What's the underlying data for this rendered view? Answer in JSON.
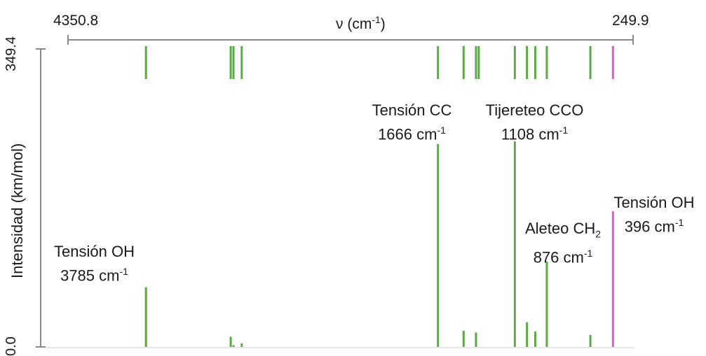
{
  "chart_data": {
    "type": "bar",
    "x_axis": {
      "label": "ν (cm",
      "label_sup": "-1",
      "label_close": ")",
      "left_tick": "4350.8",
      "right_tick": "249.9",
      "xlim": [
        4350.8,
        249.9
      ],
      "position": "top"
    },
    "y_axis": {
      "label": "Intensidad (km/mol)",
      "top_tick": "349.4",
      "bottom_tick": "0.0",
      "ylim": [
        0.0,
        349.4
      ]
    },
    "marker_row_color": "#5aaa46",
    "highlight_color": "#e455d8",
    "markers": [
      3785,
      3170,
      3150,
      3090,
      1666,
      1480,
      1390,
      1370,
      1108,
      1020,
      960,
      876,
      560,
      396
    ],
    "peaks": [
      {
        "x": 3785,
        "y": 70,
        "color": "#5aaa46"
      },
      {
        "x": 3170,
        "y": 12,
        "color": "#5aaa46"
      },
      {
        "x": 3150,
        "y": 2,
        "color": "#5aaa46"
      },
      {
        "x": 3090,
        "y": 4,
        "color": "#5aaa46"
      },
      {
        "x": 1666,
        "y": 238,
        "color": "#5aaa46"
      },
      {
        "x": 1480,
        "y": 19,
        "color": "#5aaa46"
      },
      {
        "x": 1390,
        "y": 17,
        "color": "#5aaa46"
      },
      {
        "x": 1108,
        "y": 241,
        "color": "#5aaa46"
      },
      {
        "x": 1020,
        "y": 29,
        "color": "#5aaa46"
      },
      {
        "x": 960,
        "y": 18,
        "color": "#5aaa46"
      },
      {
        "x": 876,
        "y": 100,
        "color": "#5aaa46"
      },
      {
        "x": 560,
        "y": 14,
        "color": "#5aaa46"
      },
      {
        "x": 396,
        "y": 159,
        "color": "#e455d8"
      }
    ],
    "annotations": [
      {
        "line1": "Tensión OH",
        "value": "3785",
        "unit": "cm",
        "sup": "-1"
      },
      {
        "line1": "Tensión CC",
        "value": "1666",
        "unit": "cm",
        "sup": "-1"
      },
      {
        "line1": "Tijereteo CCO",
        "value": "1108",
        "unit": "cm",
        "sup": "-1"
      },
      {
        "line1": "Aleteo CH",
        "sub": "2",
        "value": "876",
        "unit": "cm",
        "sup": "-1"
      },
      {
        "line1": "Tensión OH",
        "value": "396",
        "unit": "cm",
        "sup": "-1"
      }
    ]
  }
}
